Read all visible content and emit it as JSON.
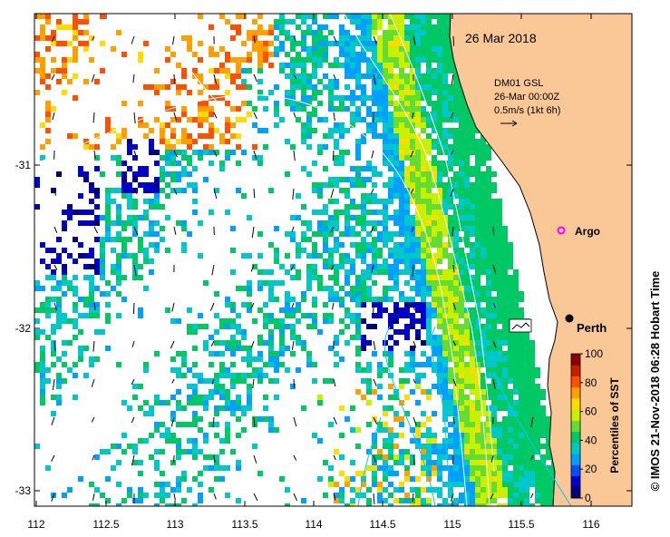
{
  "map": {
    "date_label": "26 Mar 2018",
    "info_lines": [
      "DM01 GSL",
      "26-Mar 00:00Z",
      "0.5m/s (1kt 6h)"
    ],
    "places": [
      {
        "name": "Argo",
        "lon": 115.78,
        "lat": -31.45,
        "marker": "magenta-open-circle"
      },
      {
        "name": "Perth",
        "lon": 115.85,
        "lat": -31.95,
        "marker": "black-dot"
      }
    ],
    "x_ticks": [
      "112",
      "112.5",
      "113",
      "113.5",
      "114",
      "114.5",
      "115",
      "115.5",
      "116"
    ],
    "y_ticks": [
      "-31",
      "-32",
      "-33"
    ],
    "colorbar": {
      "title": "Percentiles of SST",
      "ticks": [
        "0",
        "20",
        "40",
        "60",
        "80",
        "100"
      ],
      "colors": [
        "#00007f",
        "#0000c8",
        "#0050ff",
        "#00a0ff",
        "#00c8c8",
        "#00c864",
        "#64dc32",
        "#c8f000",
        "#ffdc00",
        "#ffa000",
        "#ff5000",
        "#c81e00",
        "#8b0000"
      ]
    },
    "credit": "© IMOS 21-Nov-2018 06:28 Hobart Time",
    "land_color": "#fac896",
    "current_color": "#00c8ff"
  }
}
